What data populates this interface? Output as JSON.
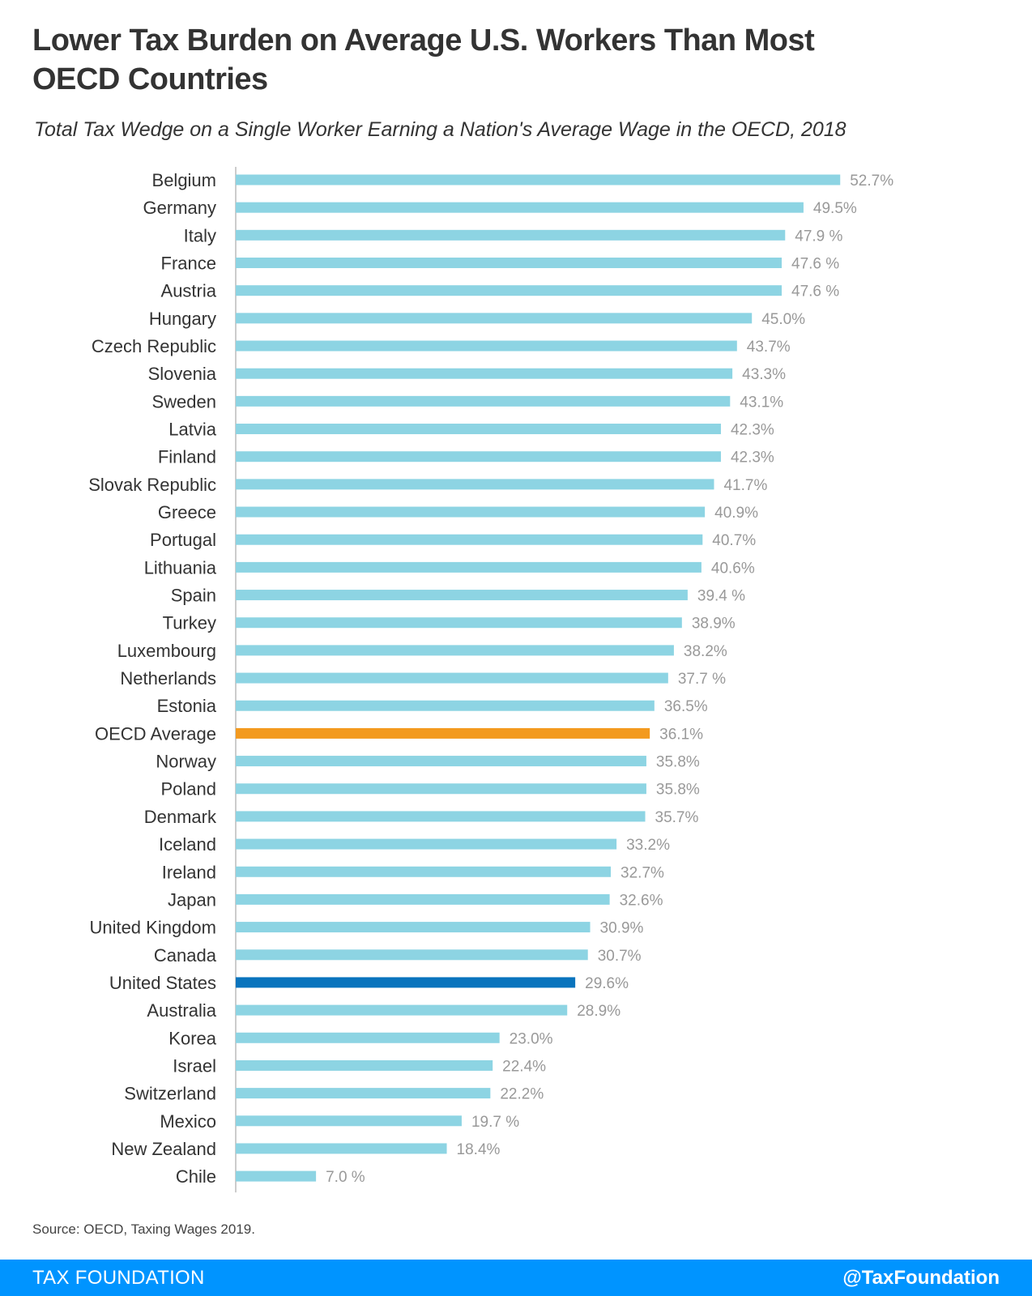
{
  "title": "Lower Tax Burden on Average U.S. Workers Than Most OECD Countries",
  "subtitle": "Total Tax Wedge on a Single Worker Earning a Nation's Average Wage in the OECD, 2018",
  "source": "Source: OECD, Taxing Wages 2019.",
  "footer": {
    "brand": "TAX FOUNDATION",
    "handle": "@TaxFoundation",
    "color": "#0094FF"
  },
  "colors": {
    "bar_default": "#8DD4E3",
    "bar_oecd_average": "#F39A1F",
    "bar_united_states": "#0A74BD",
    "axis": "#CCCCCC",
    "category_label": "#333333",
    "value_label": "#999999"
  },
  "chart_data": {
    "type": "bar",
    "orientation": "horizontal",
    "xlim": [
      0,
      60
    ],
    "grid": false,
    "categories": [
      "Belgium",
      "Germany",
      "Italy",
      "France",
      "Austria",
      "Hungary",
      "Czech Republic",
      "Slovenia",
      "Sweden",
      "Latvia",
      "Finland",
      "Slovak Republic",
      "Greece",
      "Portugal",
      "Lithuania",
      "Spain",
      "Turkey",
      "Luxembourg",
      "Netherlands",
      "Estonia",
      "OECD Average",
      "Norway",
      "Poland",
      "Denmark",
      "Iceland",
      "Ireland",
      "Japan",
      "United Kingdom",
      "Canada",
      "United States",
      "Australia",
      "Korea",
      "Israel",
      "Switzerland",
      "Mexico",
      "New Zealand",
      "Chile"
    ],
    "values": [
      52.7,
      49.5,
      47.9,
      47.6,
      47.6,
      45.0,
      43.7,
      43.3,
      43.1,
      42.3,
      42.3,
      41.7,
      40.9,
      40.7,
      40.6,
      39.4,
      38.9,
      38.2,
      37.7,
      36.5,
      36.1,
      35.8,
      35.8,
      35.7,
      33.2,
      32.7,
      32.6,
      30.9,
      30.7,
      29.6,
      28.9,
      23.0,
      22.4,
      22.2,
      19.7,
      18.4,
      7.0
    ],
    "value_labels": [
      "52.7%",
      "49.5%",
      "47.9 %",
      "47.6 %",
      "47.6 %",
      "45.0%",
      "43.7%",
      "43.3%",
      "43.1%",
      "42.3%",
      "42.3%",
      "41.7%",
      "40.9%",
      "40.7%",
      "40.6%",
      "39.4 %",
      "38.9%",
      "38.2%",
      "37.7 %",
      "36.5%",
      "36.1%",
      "35.8%",
      "35.8%",
      "35.7%",
      "33.2%",
      "32.7%",
      "32.6%",
      "30.9%",
      "30.7%",
      "29.6%",
      "28.9%",
      "23.0%",
      "22.4%",
      "22.2%",
      "19.7 %",
      "18.4%",
      "7.0 %"
    ],
    "highlight": {
      "OECD Average": "bar_oecd_average",
      "United States": "bar_united_states"
    }
  }
}
